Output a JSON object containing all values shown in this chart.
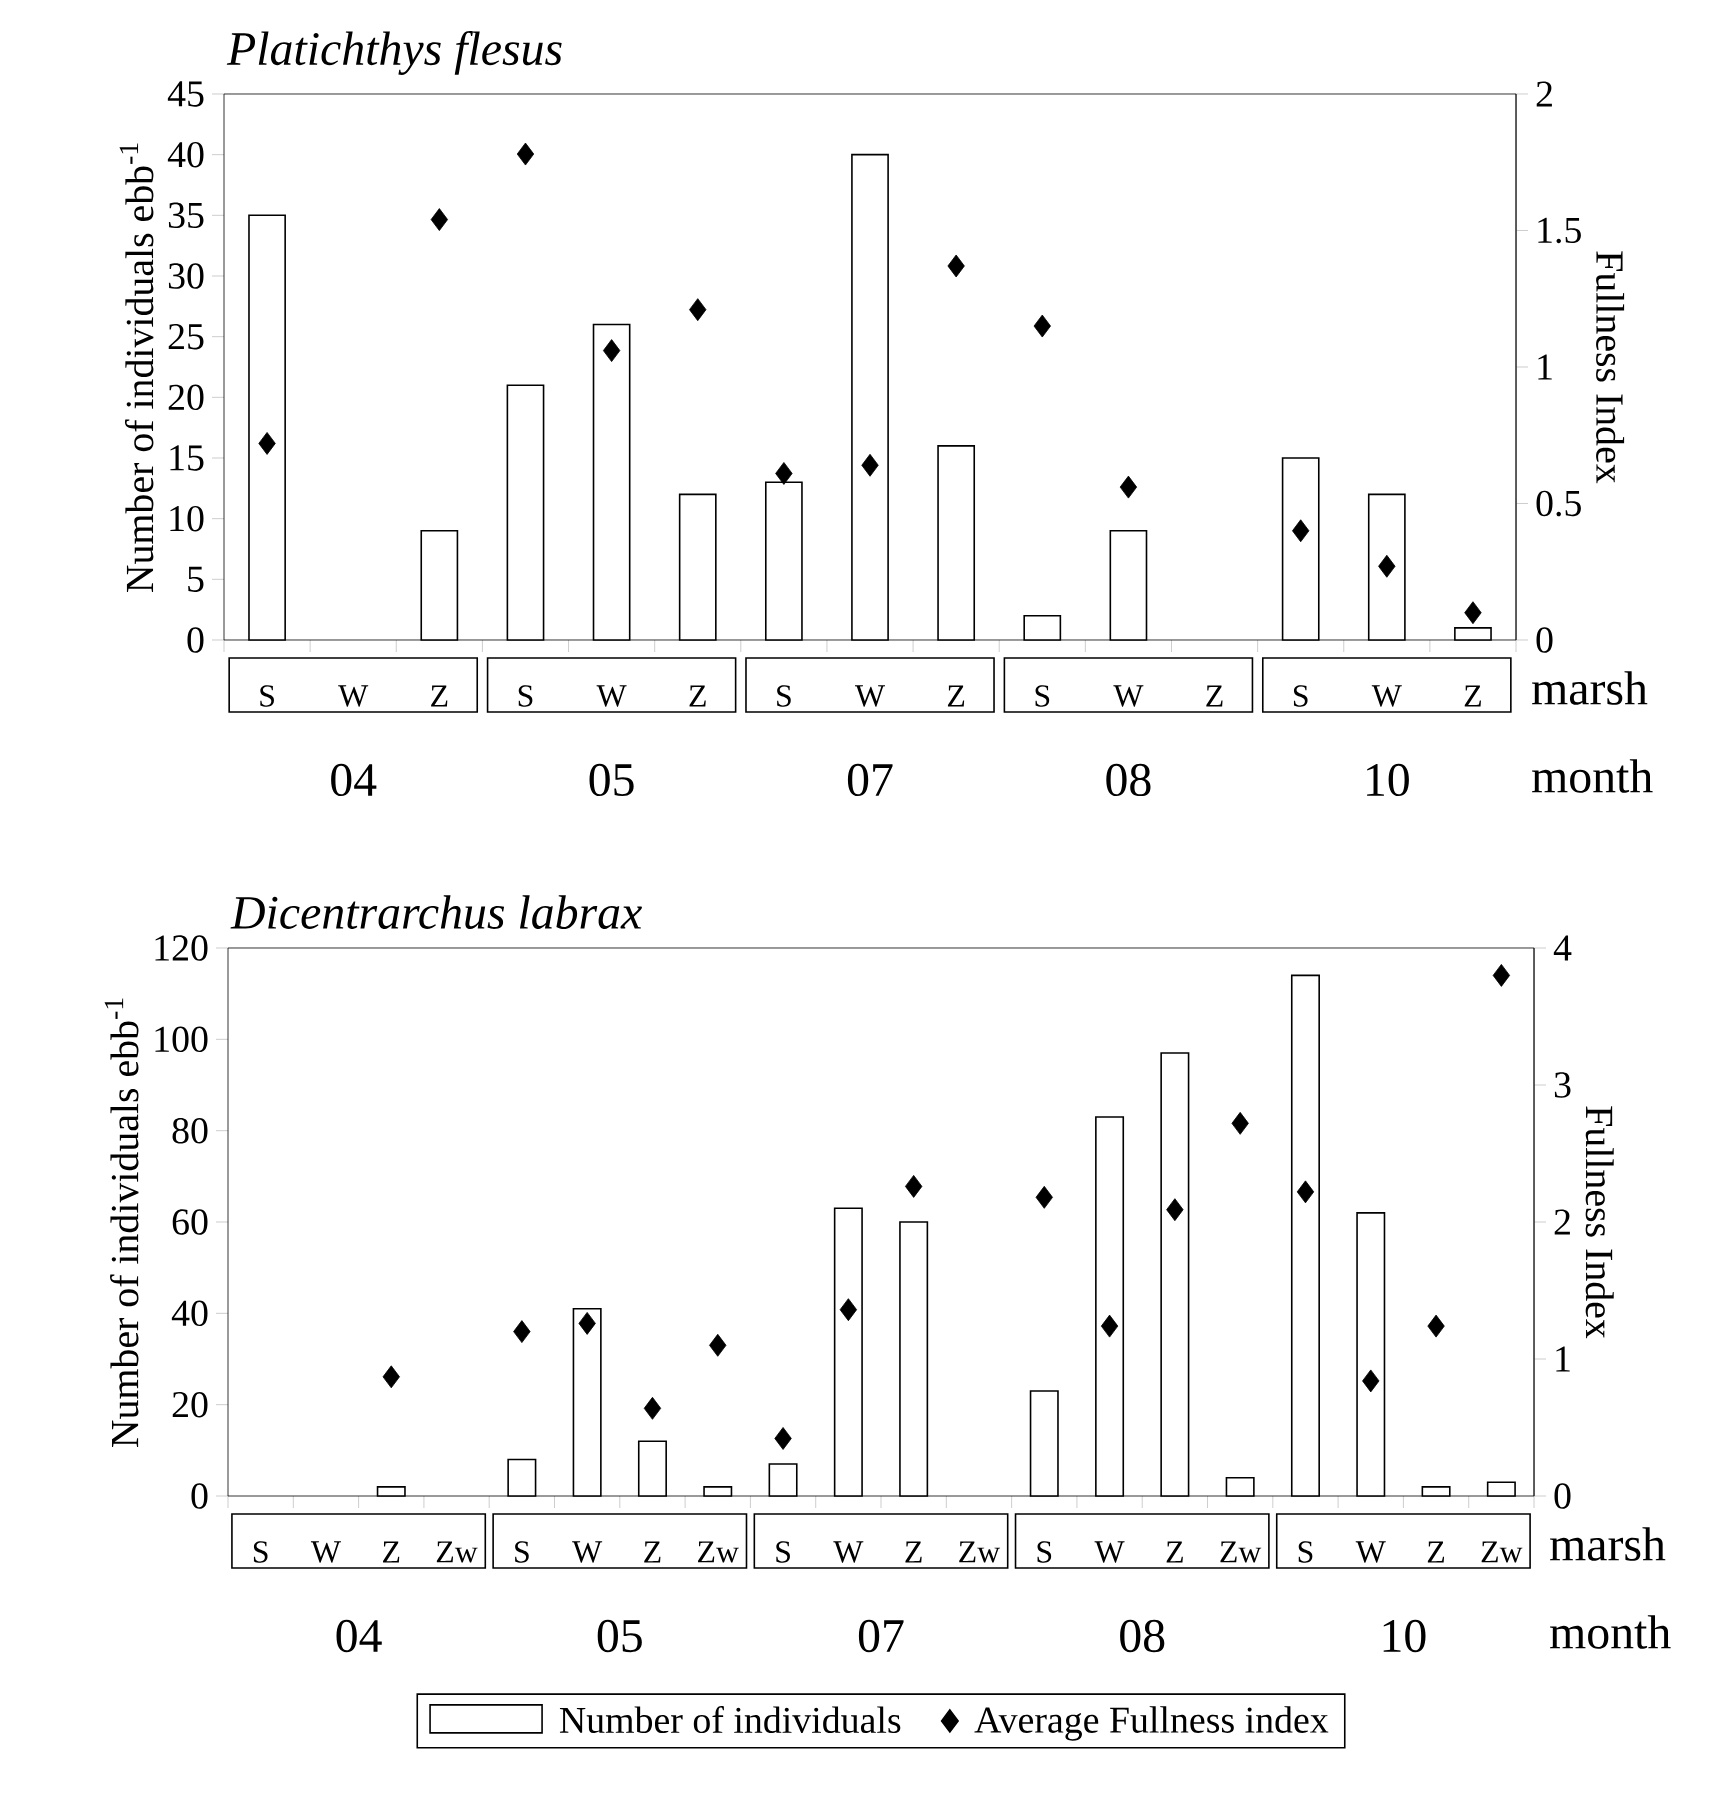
{
  "chart_data": [
    {
      "type": "bar",
      "title": "Platichthys flesus",
      "xlabel": "marsh",
      "ylabel": "Number of individuals ebb$^{-1}$",
      "y2label": "Fullness Index",
      "categories": [
        "S",
        "W",
        "Z",
        "S",
        "W",
        "Z",
        "S",
        "W",
        "Z",
        "S",
        "W",
        "Z",
        "S",
        "W",
        "Z"
      ],
      "annotations": [
        "04",
        "05",
        "07",
        "08",
        "10",
        "month"
      ],
      "ylim": [
        0,
        45
      ],
      "yticks": [
        0,
        5,
        10,
        15,
        20,
        25,
        30,
        35,
        40,
        45
      ],
      "y2lim": [
        0,
        2
      ],
      "y2ticks": [
        0,
        0.5,
        1,
        1.5,
        2
      ],
      "marker": "diamond",
      "series": [
        {
          "type": "bar",
          "color": "#ffffff",
          "values": [
            35,
            null,
            9,
            21,
            26,
            12,
            13,
            40,
            16,
            2,
            9,
            null,
            15,
            12,
            1
          ]
        },
        {
          "type": "scatter",
          "axis": "y2",
          "color": "#000000",
          "values": [
            0.72,
            null,
            1.54,
            1.78,
            1.06,
            1.21,
            0.61,
            0.64,
            1.37,
            1.15,
            0.56,
            null,
            0.4,
            0.27,
            0.1
          ]
        }
      ]
    },
    {
      "type": "bar",
      "title": "Dicentrarchus labrax",
      "xlabel": "marsh",
      "ylabel": "Number of individuals ebb$^{-1}$",
      "y2label": "Fullness Index",
      "categories": [
        "S",
        "W",
        "Z",
        "Zw",
        "S",
        "W",
        "Z",
        "Zw",
        "S",
        "W",
        "Z",
        "Zw",
        "S",
        "W",
        "Z",
        "Zw",
        "S",
        "W",
        "Z",
        "Zw"
      ],
      "annotations": [
        "04",
        "05",
        "07",
        "08",
        "10",
        "month"
      ],
      "ylim": [
        0,
        120
      ],
      "yticks": [
        0,
        20,
        40,
        60,
        80,
        100,
        120
      ],
      "y2lim": [
        0,
        4
      ],
      "y2ticks": [
        0,
        1,
        2,
        3,
        4
      ],
      "marker": "diamond",
      "legend": "bottom",
      "series": [
        {
          "type": "bar",
          "name": "Number of individuals",
          "color": "#ffffff",
          "values": [
            null,
            null,
            2,
            null,
            8,
            41,
            12,
            2,
            7,
            63,
            60,
            null,
            23,
            83,
            97,
            4,
            114,
            62,
            2,
            3
          ]
        },
        {
          "type": "scatter",
          "axis": "y2",
          "name": "Average Fullness index",
          "color": "#000000",
          "values": [
            null,
            null,
            0.87,
            null,
            1.2,
            1.26,
            0.64,
            1.1,
            0.42,
            1.36,
            2.26,
            null,
            2.18,
            1.24,
            2.09,
            2.72,
            2.22,
            0.84,
            1.24,
            3.8
          ]
        }
      ]
    }
  ]
}
